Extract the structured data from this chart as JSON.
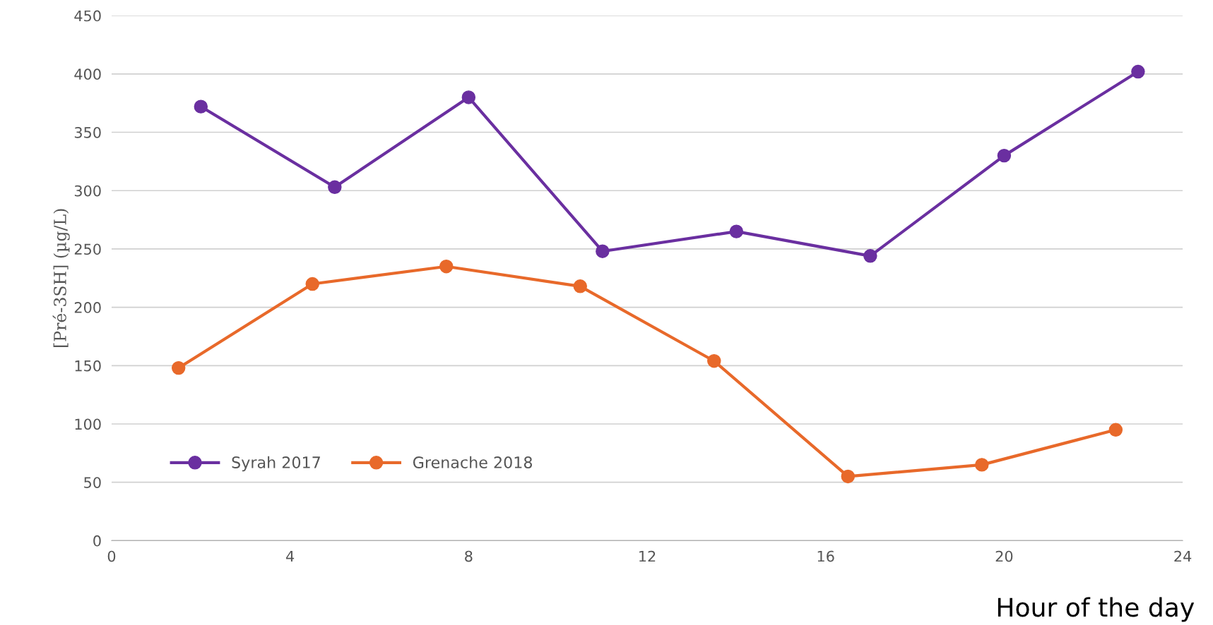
{
  "chart_data": {
    "type": "line",
    "xlabel": "Hour of the day",
    "ylabel": "[Pré-3SH] (µg/L)",
    "xlim": [
      0,
      24
    ],
    "xticks": [
      0,
      4,
      8,
      12,
      16,
      20,
      24
    ],
    "ylim": [
      0,
      450
    ],
    "yticks": [
      0,
      50,
      100,
      150,
      200,
      250,
      300,
      350,
      400,
      450
    ],
    "grid": "y",
    "legend": "bottom left",
    "marker": "circle",
    "line_style": "solid",
    "series": [
      {
        "name": "Syrah 2017",
        "color": "#6a2fa0",
        "x": [
          2,
          5,
          8,
          11,
          14,
          17,
          20,
          23
        ],
        "values": [
          372,
          303,
          380,
          248,
          265,
          244,
          330,
          402
        ]
      },
      {
        "name": "Grenache 2018",
        "color": "#e8692a",
        "x": [
          1.5,
          4.5,
          7.5,
          10.5,
          13.5,
          16.5,
          19.5,
          22.5
        ],
        "values": [
          148,
          220,
          235,
          218,
          154,
          55,
          65,
          95
        ]
      }
    ]
  }
}
